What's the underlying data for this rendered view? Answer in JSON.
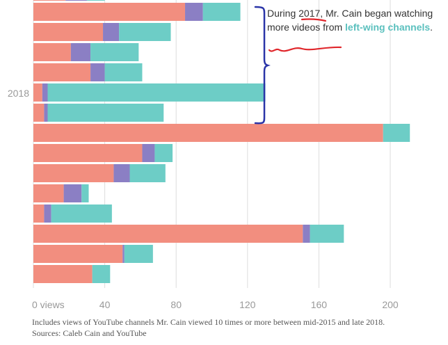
{
  "chart_data": {
    "type": "bar",
    "orientation": "horizontal",
    "stacked": true,
    "category_label": "2018",
    "x_ticks": [
      {
        "value": 0,
        "label": "0 views"
      },
      {
        "value": 40,
        "label": "40"
      },
      {
        "value": 80,
        "label": "80"
      },
      {
        "value": 120,
        "label": "120"
      },
      {
        "value": 160,
        "label": "160"
      },
      {
        "value": 200,
        "label": "200"
      }
    ],
    "xlim": [
      0,
      210
    ],
    "series_colors": [
      "#f28e7f",
      "#8b7fc4",
      "#6dcdc6"
    ],
    "rows": [
      [
        18,
        12,
        10
      ],
      [
        85,
        10,
        21
      ],
      [
        39,
        9,
        29
      ],
      [
        21,
        11,
        27
      ],
      [
        32,
        8,
        21
      ],
      [
        5,
        3,
        122
      ],
      [
        6,
        2,
        65
      ],
      [
        196,
        0,
        15
      ],
      [
        61,
        7,
        10
      ],
      [
        45,
        9,
        20
      ],
      [
        17,
        10,
        4
      ],
      [
        6,
        4,
        34
      ],
      [
        151,
        4,
        19
      ],
      [
        50,
        1,
        16
      ],
      [
        33,
        0,
        10
      ]
    ]
  },
  "annotation": {
    "text_before": "During ",
    "year": "2017",
    "text_mid": ", Mr. Cain began watching more videos from ",
    "highlight": "left-wing channels",
    "text_after": "."
  },
  "footnote": {
    "line1": "Includes views of YouTube channels Mr. Cain viewed 10 times or more between mid-2015 and late 2018.",
    "line2": "Sources: Caleb Cain and YouTube"
  }
}
